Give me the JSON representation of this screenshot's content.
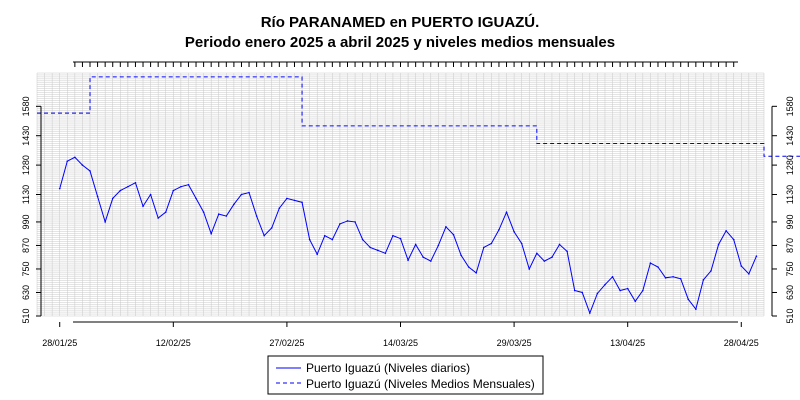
{
  "chart_data": {
    "type": "line",
    "title": "Río PARANAMED en PUERTO IGUAZÚ.",
    "subtitle": "Periodo enero 2025 a abril 2025 y niveles medios mensuales",
    "xlabel": "",
    "ylabel": "",
    "x_range": [
      "2025-01-25",
      "2025-05-01"
    ],
    "x_tick_labels": [
      "28/01/25",
      "12/02/25",
      "27/02/25",
      "14/03/25",
      "29/03/25",
      "13/04/25",
      "28/04/25"
    ],
    "ylim": [
      510,
      1750
    ],
    "y_ticks": [
      510,
      630,
      750,
      870,
      990,
      1130,
      1280,
      1430,
      1580
    ],
    "y_tick_labels": [
      "510",
      "630",
      "750",
      "870",
      "990",
      "1130",
      "1280",
      "1430",
      "1580"
    ],
    "y_axes": "left-and-right",
    "grid": true,
    "legend_position": "bottom-center",
    "series": [
      {
        "name": "Puerto Iguazú (Niveles diarios)",
        "color": "#0000ff",
        "style": "solid",
        "points": [
          [
            "2025-01-28",
            1160
          ],
          [
            "2025-01-29",
            1300
          ],
          [
            "2025-01-30",
            1320
          ],
          [
            "2025-01-31",
            1280
          ],
          [
            "2025-02-01",
            1250
          ],
          [
            "2025-02-02",
            1120
          ],
          [
            "2025-02-03",
            990
          ],
          [
            "2025-02-04",
            1110
          ],
          [
            "2025-02-05",
            1150
          ],
          [
            "2025-02-06",
            1170
          ],
          [
            "2025-02-07",
            1190
          ],
          [
            "2025-02-08",
            1070
          ],
          [
            "2025-02-09",
            1130
          ],
          [
            "2025-02-10",
            1010
          ],
          [
            "2025-02-11",
            1040
          ],
          [
            "2025-02-12",
            1150
          ],
          [
            "2025-02-13",
            1170
          ],
          [
            "2025-02-14",
            1180
          ],
          [
            "2025-02-15",
            1110
          ],
          [
            "2025-02-16",
            1040
          ],
          [
            "2025-02-17",
            930
          ],
          [
            "2025-02-18",
            1030
          ],
          [
            "2025-02-19",
            1020
          ],
          [
            "2025-02-20",
            1080
          ],
          [
            "2025-02-21",
            1130
          ],
          [
            "2025-02-22",
            1140
          ],
          [
            "2025-02-23",
            1020
          ],
          [
            "2025-02-24",
            920
          ],
          [
            "2025-02-25",
            960
          ],
          [
            "2025-02-26",
            1060
          ],
          [
            "2025-02-27",
            1110
          ],
          [
            "2025-02-28",
            1100
          ],
          [
            "2025-03-01",
            1090
          ],
          [
            "2025-03-02",
            900
          ],
          [
            "2025-03-03",
            825
          ],
          [
            "2025-03-04",
            920
          ],
          [
            "2025-03-05",
            900
          ],
          [
            "2025-03-06",
            980
          ],
          [
            "2025-03-07",
            995
          ],
          [
            "2025-03-08",
            990
          ],
          [
            "2025-03-09",
            900
          ],
          [
            "2025-03-10",
            860
          ],
          [
            "2025-03-11",
            845
          ],
          [
            "2025-03-12",
            830
          ],
          [
            "2025-03-13",
            920
          ],
          [
            "2025-03-14",
            905
          ],
          [
            "2025-03-15",
            795
          ],
          [
            "2025-03-16",
            875
          ],
          [
            "2025-03-17",
            810
          ],
          [
            "2025-03-18",
            790
          ],
          [
            "2025-03-19",
            870
          ],
          [
            "2025-03-20",
            965
          ],
          [
            "2025-03-21",
            925
          ],
          [
            "2025-03-22",
            820
          ],
          [
            "2025-03-23",
            760
          ],
          [
            "2025-03-24",
            730
          ],
          [
            "2025-03-25",
            860
          ],
          [
            "2025-03-26",
            880
          ],
          [
            "2025-03-27",
            950
          ],
          [
            "2025-03-28",
            1040
          ],
          [
            "2025-03-29",
            940
          ],
          [
            "2025-03-30",
            880
          ],
          [
            "2025-03-31",
            750
          ],
          [
            "2025-04-01",
            830
          ],
          [
            "2025-04-02",
            790
          ],
          [
            "2025-04-03",
            810
          ],
          [
            "2025-04-04",
            875
          ],
          [
            "2025-04-05",
            840
          ],
          [
            "2025-04-06",
            640
          ],
          [
            "2025-04-07",
            630
          ],
          [
            "2025-04-08",
            525
          ],
          [
            "2025-04-09",
            625
          ],
          [
            "2025-04-10",
            670
          ],
          [
            "2025-04-11",
            710
          ],
          [
            "2025-04-12",
            640
          ],
          [
            "2025-04-13",
            650
          ],
          [
            "2025-04-14",
            585
          ],
          [
            "2025-04-15",
            640
          ],
          [
            "2025-04-16",
            780
          ],
          [
            "2025-04-17",
            760
          ],
          [
            "2025-04-18",
            705
          ],
          [
            "2025-04-19",
            710
          ],
          [
            "2025-04-20",
            700
          ],
          [
            "2025-04-21",
            595
          ],
          [
            "2025-04-22",
            545
          ],
          [
            "2025-04-23",
            695
          ],
          [
            "2025-04-24",
            740
          ],
          [
            "2025-04-25",
            875
          ],
          [
            "2025-04-26",
            945
          ],
          [
            "2025-04-27",
            900
          ],
          [
            "2025-04-28",
            765
          ],
          [
            "2025-04-29",
            725
          ],
          [
            "2025-04-30",
            815
          ]
        ]
      },
      {
        "name": "Puerto Iguazú (Niveles Medios Mensuales)",
        "color": "#0000ff",
        "style": "dashed",
        "segments": [
          {
            "from": "2025-01-25",
            "to": "2025-02-01",
            "value": 1545
          },
          {
            "from": "2025-02-01",
            "to": "2025-03-01",
            "value": 1730
          },
          {
            "from": "2025-03-01",
            "to": "2025-04-01",
            "value": 1480
          },
          {
            "from": "2025-04-01",
            "to": "2025-05-01",
            "value": 1390
          },
          {
            "from": "2025-05-01",
            "to": "2025-05-07",
            "value": 1325
          }
        ]
      }
    ]
  }
}
